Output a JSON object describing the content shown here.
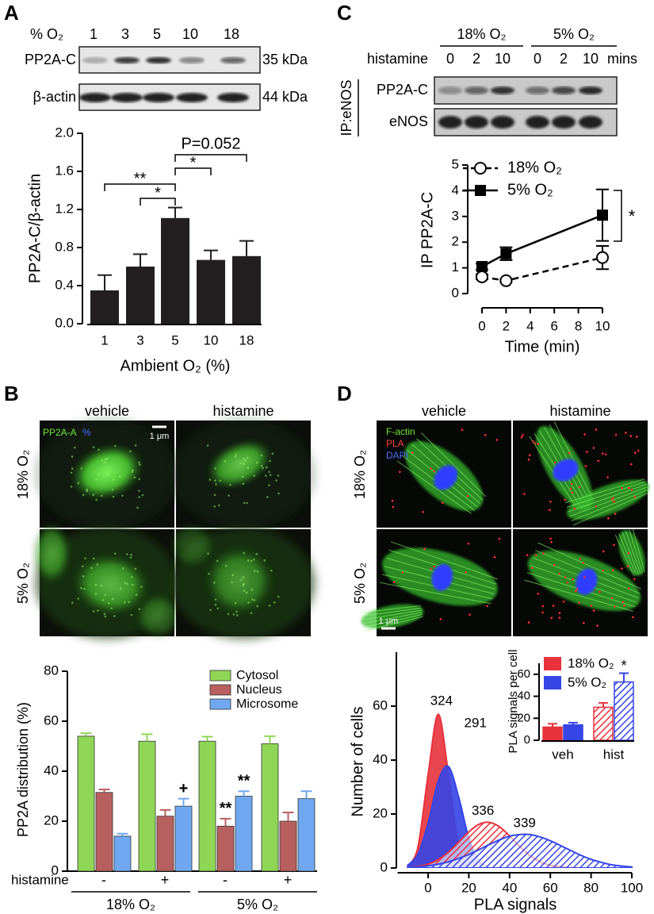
{
  "panels": {
    "A": {
      "letter": "A",
      "blot": {
        "header": "% O₂",
        "lanes": [
          "1",
          "3",
          "5",
          "10",
          "18"
        ],
        "rows": [
          {
            "label": "PP2A-C",
            "size": "35 kDa"
          },
          {
            "label": "β-actin",
            "size": "44 kDa"
          }
        ]
      }
    },
    "B": {
      "letter": "B",
      "columns": [
        "vehicle",
        "histamine"
      ],
      "rows": [
        "18% O₂",
        "5% O₂"
      ],
      "stain": "PP2A-A",
      "stain2": "%",
      "scale_bar": "1 μm"
    },
    "C": {
      "letter": "C",
      "blot": {
        "groups": [
          "18% O₂",
          "5% O₂"
        ],
        "row_header": "histamine",
        "lanes": [
          "0",
          "2",
          "10",
          "0",
          "2",
          "10"
        ],
        "unit": "mins",
        "ip": "IP:eNOS",
        "rows": [
          "PP2A-C",
          "eNOS"
        ]
      }
    },
    "D": {
      "letter": "D",
      "columns": [
        "vehicle",
        "histamine"
      ],
      "rows": [
        "18% O₂",
        "5% O₂"
      ],
      "stains": [
        "F-actin",
        "PLA",
        "DAPI"
      ],
      "scale_bar": "1 μm"
    }
  },
  "chart_data": [
    {
      "type": "bar",
      "categories": [
        "1",
        "3",
        "5",
        "10",
        "18"
      ],
      "values": [
        0.35,
        0.6,
        1.11,
        0.67,
        0.71
      ],
      "errors": [
        0.16,
        0.13,
        0.11,
        0.1,
        0.16
      ],
      "color": "#231f20",
      "ylim": [
        0,
        2
      ],
      "yticks": [
        {
          "value": 0,
          "label": "0.0"
        },
        0.4,
        0.8,
        1.2,
        1.6,
        {
          "value": 2,
          "label": "2.0"
        }
      ],
      "x_label": "Ambient O₂ (%)",
      "y_label": "PP2A-C/β-actin",
      "annotations": [
        "**",
        "*",
        "*",
        "P=0.052"
      ]
    },
    {
      "type": "line",
      "x": [
        0,
        2,
        10
      ],
      "series": [
        {
          "name": "18% O₂",
          "color": "#000000",
          "marker": "circle",
          "dashed": true,
          "values": [
            0.65,
            0.5,
            1.4
          ],
          "errors": [
            0.1,
            0.05,
            0.45
          ]
        },
        {
          "name": "5% O₂",
          "color": "#000000",
          "marker": "square",
          "dashed": false,
          "values": [
            1.05,
            1.55,
            3.05
          ],
          "errors": [
            0.12,
            0.25,
            1.0
          ]
        }
      ],
      "xlim": [
        0,
        10
      ],
      "ylim": [
        0,
        5
      ],
      "xticks": [
        0,
        2,
        4,
        6,
        8,
        10
      ],
      "yticks": [
        0,
        1,
        2,
        3,
        4,
        5
      ],
      "x_label": "Time (min)",
      "y_label": "IP PP2A-C",
      "legend": "upper left",
      "annotations": [
        "*"
      ]
    },
    {
      "type": "grouped_bar",
      "categories": [
        "-",
        "+",
        "-",
        "+"
      ],
      "category_axis_label": "histamine",
      "groups": [
        "18% O₂",
        "5% O₂"
      ],
      "series": [
        {
          "name": "Cytosol",
          "color": "#8fd656",
          "values": [
            54,
            52,
            52,
            51
          ],
          "errors": [
            1.2,
            2.8,
            1.8,
            3
          ]
        },
        {
          "name": "Nucleus",
          "color": "#b85f5f",
          "values": [
            31.5,
            22,
            18,
            20
          ],
          "errors": [
            1.2,
            2.5,
            3,
            3.5
          ]
        },
        {
          "name": "Microsome",
          "color": "#6fa8f0",
          "values": [
            14,
            26,
            30,
            29
          ],
          "errors": [
            1,
            3,
            2,
            3
          ]
        }
      ],
      "ylim": [
        0,
        80
      ],
      "yticks": [
        0,
        20,
        40,
        60,
        80
      ],
      "y_label": "PP2A distribution (%)",
      "legend": "upper right",
      "annotations": [
        "+",
        "**",
        "**"
      ]
    },
    {
      "type": "density",
      "x": [
        -10,
        -5,
        0,
        5,
        10,
        15,
        20,
        25,
        30,
        35,
        40,
        45,
        50,
        55,
        60,
        65,
        70,
        75,
        80,
        85,
        90,
        95,
        100
      ],
      "series": [
        {
          "color": "#e8323c",
          "hatch": false,
          "label": "324",
          "values": [
            0.6,
            7.7,
            34.6,
            57,
            34.6,
            7.7,
            0.6,
            0,
            0,
            0,
            0,
            0,
            0,
            0,
            0,
            0,
            0,
            0,
            0,
            0,
            0,
            0,
            0
          ]
        },
        {
          "color": "#3545e6",
          "hatch": false,
          "label": "291",
          "values": [
            1.0,
            5.1,
            16.6,
            32.3,
            37.6,
            26.3,
            11.1,
            2.8,
            0.4,
            0,
            0,
            0,
            0,
            0,
            0,
            0,
            0,
            0,
            0,
            0,
            0,
            0,
            0
          ]
        },
        {
          "color": "#e8323c",
          "hatch": true,
          "label": "336",
          "values": [
            0.2,
            0.6,
            1.4,
            3.1,
            5.8,
            9.5,
            13.4,
            16.2,
            16.9,
            15.3,
            11.9,
            8.0,
            4.6,
            2.3,
            1.0,
            0.4,
            0.1,
            0,
            0,
            0,
            0,
            0,
            0
          ]
        },
        {
          "color": "#3545e6",
          "hatch": true,
          "label": "339",
          "values": [
            0.2,
            0.4,
            0.8,
            1.4,
            2.3,
            3.5,
            5.0,
            6.8,
            8.7,
            10.4,
            11.8,
            12.4,
            12.4,
            11.5,
            10.1,
            8.3,
            6.5,
            4.7,
            3.2,
            2.1,
            1.2,
            0.7,
            0.4
          ]
        }
      ],
      "xlim": [
        -15,
        100
      ],
      "ylim": [
        0,
        80
      ],
      "xticks": [
        0,
        20,
        40,
        60,
        80,
        100
      ],
      "yticks": [
        0,
        20,
        40,
        60
      ],
      "x_label": "PLA signals",
      "y_label": "Number of cells"
    },
    {
      "type": "bar",
      "categories": [
        "veh",
        "hist"
      ],
      "hatch": [
        false,
        true
      ],
      "series": [
        {
          "name": "18% O₂",
          "color": "#e8323c",
          "values": [
            12,
            30
          ],
          "errors": [
            3,
            4
          ]
        },
        {
          "name": "5% O₂",
          "color": "#3545e6",
          "values": [
            14,
            53
          ],
          "errors": [
            2,
            8
          ]
        }
      ],
      "ylim": [
        0,
        70
      ],
      "yticks": [
        0,
        20,
        40,
        60
      ],
      "y_label": "PLA signals per cell",
      "legend": "upper left",
      "annotations": [
        "*"
      ]
    }
  ]
}
